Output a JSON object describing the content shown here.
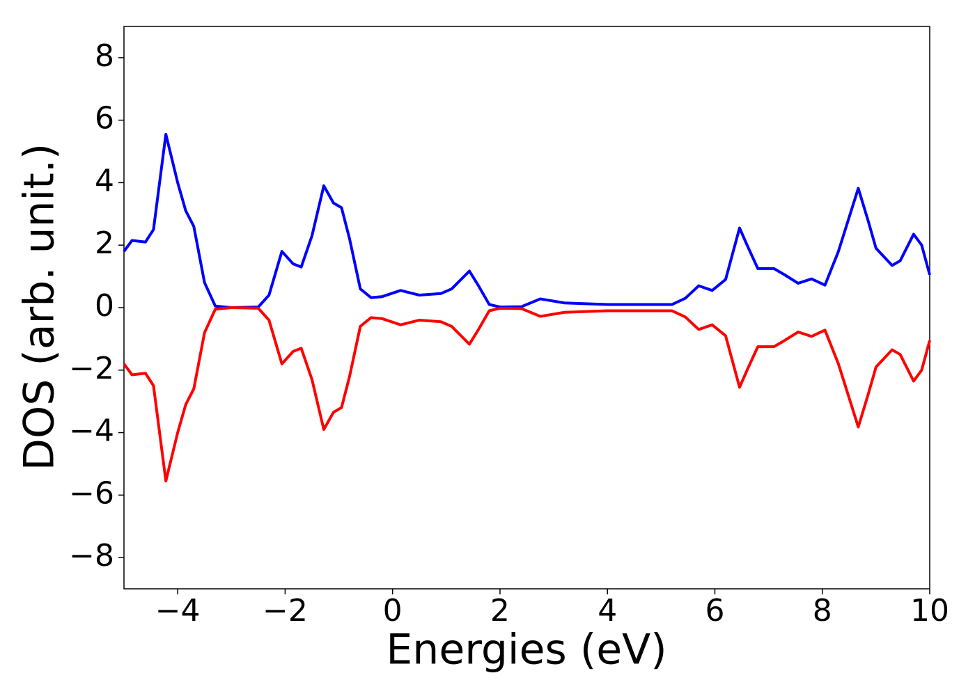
{
  "chart_data": {
    "type": "line",
    "xlabel": "Energies (eV)",
    "ylabel": "DOS (arb. unit.)",
    "x": [
      -5,
      -4.85,
      -4.6,
      -4.45,
      -4.22,
      -4.0,
      -3.85,
      -3.7,
      -3.5,
      -3.3,
      -3.0,
      -2.5,
      -2.3,
      -2.06,
      -1.85,
      -1.7,
      -1.5,
      -1.28,
      -1.1,
      -0.95,
      -0.8,
      -0.6,
      -0.4,
      -0.2,
      0.15,
      0.5,
      0.9,
      1.1,
      1.43,
      1.6,
      1.8,
      2.0,
      2.4,
      2.75,
      3.2,
      4.0,
      5.2,
      5.45,
      5.7,
      5.95,
      6.2,
      6.46,
      6.6,
      6.8,
      7.1,
      7.3,
      7.55,
      7.8,
      8.05,
      8.3,
      8.67,
      8.85,
      9.0,
      9.3,
      9.45,
      9.7,
      9.85,
      10
    ],
    "series": [
      {
        "color": "#0000ff",
        "values": [
          1.8,
          2.15,
          2.1,
          2.5,
          5.55,
          4.0,
          3.1,
          2.6,
          0.8,
          0.05,
          0,
          0.02,
          0.4,
          1.8,
          1.4,
          1.3,
          2.3,
          3.9,
          3.35,
          3.2,
          2.2,
          0.6,
          0.32,
          0.35,
          0.55,
          0.4,
          0.45,
          0.6,
          1.17,
          0.7,
          0.1,
          0.02,
          0.03,
          0.28,
          0.15,
          0.1,
          0.1,
          0.3,
          0.7,
          0.55,
          0.9,
          2.55,
          2.0,
          1.25,
          1.25,
          1.05,
          0.78,
          0.92,
          0.72,
          1.8,
          3.82,
          2.8,
          1.9,
          1.35,
          1.5,
          2.35,
          2.0,
          1.05
        ]
      },
      {
        "color": "#ff0000",
        "values": [
          -1.8,
          -2.15,
          -2.1,
          -2.5,
          -5.55,
          -4.0,
          -3.1,
          -2.6,
          -0.8,
          -0.05,
          0,
          -0.02,
          -0.4,
          -1.8,
          -1.4,
          -1.3,
          -2.3,
          -3.9,
          -3.35,
          -3.2,
          -2.2,
          -0.6,
          -0.32,
          -0.35,
          -0.55,
          -0.4,
          -0.45,
          -0.6,
          -1.17,
          -0.7,
          -0.1,
          -0.02,
          -0.03,
          -0.28,
          -0.15,
          -0.1,
          -0.1,
          -0.3,
          -0.7,
          -0.55,
          -0.9,
          -2.55,
          -2.0,
          -1.25,
          -1.25,
          -1.05,
          -0.78,
          -0.92,
          -0.72,
          -1.8,
          -3.82,
          -2.8,
          -1.9,
          -1.35,
          -1.5,
          -2.35,
          -2.0,
          -1.05
        ]
      }
    ],
    "xlim": [
      -5,
      10
    ],
    "xticks": [
      {
        "value": -4,
        "label": "−4"
      },
      {
        "value": -2,
        "label": "−2"
      },
      0,
      2,
      4,
      6,
      8,
      10
    ],
    "ylim": [
      -9,
      9
    ],
    "yticks": [
      {
        "value": -8,
        "label": "−8"
      },
      {
        "value": -6,
        "label": "−6"
      },
      {
        "value": -4,
        "label": "−4"
      },
      {
        "value": -2,
        "label": "−2"
      },
      0,
      2,
      4,
      6,
      8
    ],
    "grid": false
  }
}
